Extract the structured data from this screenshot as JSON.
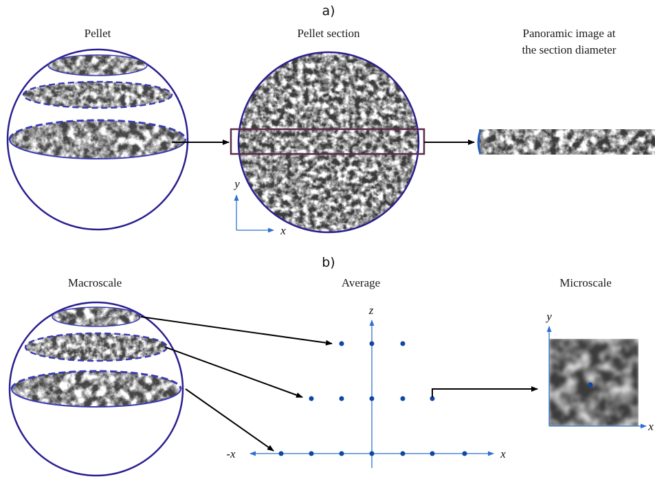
{
  "panel_a": {
    "label": "a)",
    "titles": {
      "pellet": "Pellet",
      "section": "Pellet section",
      "panoramic_line1": "Panoramic image at",
      "panoramic_line2": "the section diameter"
    },
    "axes": {
      "x": "x",
      "y": "y"
    }
  },
  "panel_b": {
    "label": "b)",
    "titles": {
      "macroscale": "Macroscale",
      "average": "Average",
      "microscale": "Microscale"
    },
    "axes": {
      "z": "z",
      "x": "x",
      "neg_x": "-x",
      "micro_x": "x",
      "micro_y": "y"
    }
  },
  "colors": {
    "circle_outline": "#2a1f8f",
    "dashed_rim": "#3b3bb5",
    "section_box": "#5a2a4a",
    "axis_blue": "#2f6fd0",
    "dot_blue": "#0d47a1",
    "arrow": "#000000"
  }
}
